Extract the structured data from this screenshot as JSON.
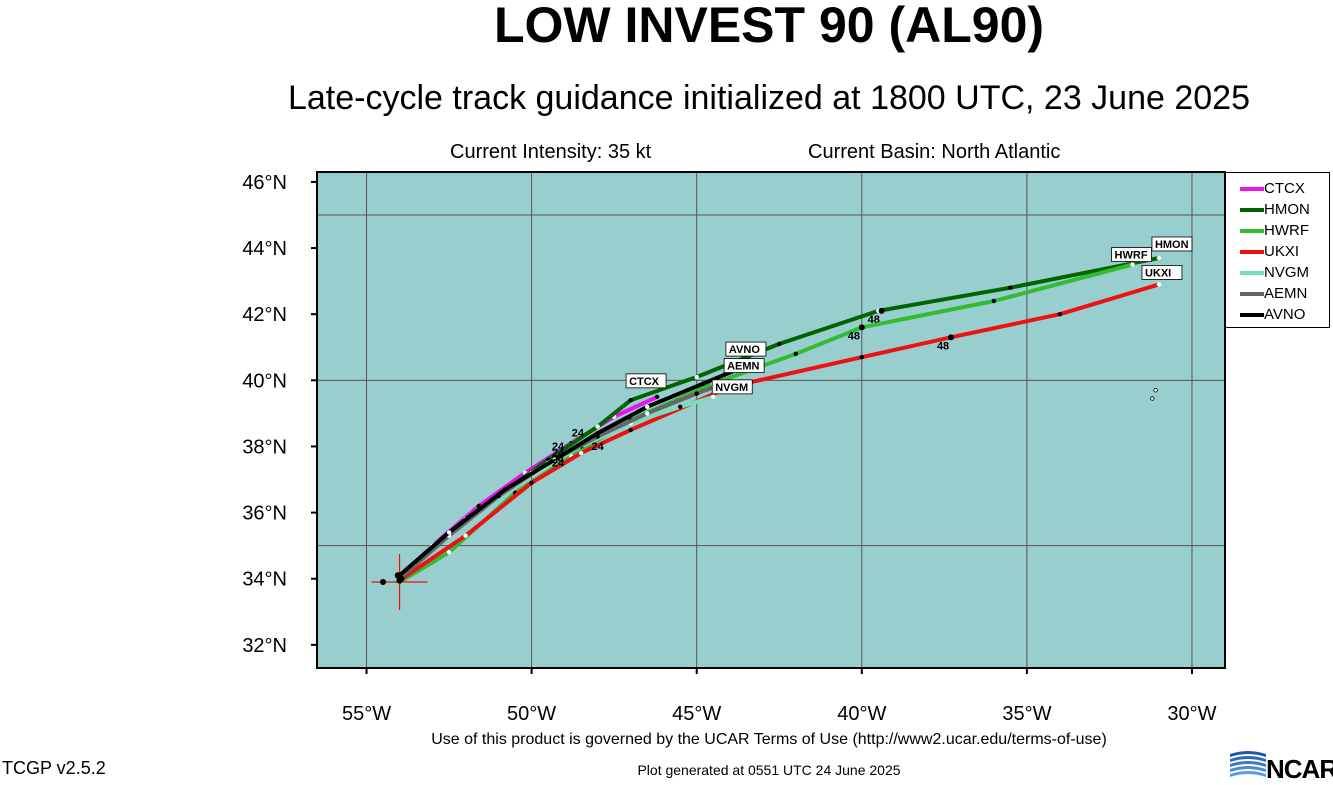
{
  "header": {
    "title": "LOW INVEST 90 (AL90)",
    "subtitle": "Late-cycle track guidance initialized at 1800 UTC, 23 June 2025",
    "intensity": "Current Intensity: 35 kt",
    "basin": "Current Basin: North Atlantic"
  },
  "footer": {
    "terms": "Use of this product is governed by the UCAR Terms of Use (http://www2.ucar.edu/terms-of-use)",
    "generated": "Plot generated at 0551 UTC   24 June 2025",
    "version": "TCGP v2.5.2",
    "logo_text": "NCAR"
  },
  "colors": {
    "ocean": "#98cece",
    "grid": "#555555",
    "initial_cross": "#ee1111"
  },
  "chart_data": {
    "type": "line",
    "title": "LOW INVEST 90 (AL90)",
    "xlim": [
      -56.5,
      -29
    ],
    "ylim": [
      31.3,
      46.3
    ],
    "x_ticks": [
      {
        "value": -55,
        "label": "55°W"
      },
      {
        "value": -50,
        "label": "50°W"
      },
      {
        "value": -45,
        "label": "45°W"
      },
      {
        "value": -40,
        "label": "40°W"
      },
      {
        "value": -35,
        "label": "35°W"
      },
      {
        "value": -30,
        "label": "30°W"
      }
    ],
    "y_ticks": [
      {
        "value": 32,
        "label": "32°N"
      },
      {
        "value": 34,
        "label": "34°N"
      },
      {
        "value": 36,
        "label": "36°N"
      },
      {
        "value": 38,
        "label": "38°N"
      },
      {
        "value": 40,
        "label": "40°N"
      },
      {
        "value": 42,
        "label": "42°N"
      },
      {
        "value": 44,
        "label": "44°N"
      },
      {
        "value": 46,
        "label": "46°N"
      }
    ],
    "grid_lines_lon": [
      -55,
      -50,
      -45,
      -40,
      -35,
      -30
    ],
    "grid_lines_lat": [
      35,
      40,
      45
    ],
    "legend_position": "right",
    "initial_position": {
      "lon": -54.0,
      "lat": 33.9
    },
    "series": [
      {
        "name": "CTCX",
        "color": "#ee11ee",
        "points": [
          [
            -54.0,
            34.05
          ],
          [
            -53.0,
            35.0
          ],
          [
            -51.6,
            36.2
          ],
          [
            -50.2,
            37.2
          ],
          [
            -48.8,
            38.1
          ],
          [
            -47.5,
            38.9
          ],
          [
            -46.2,
            39.5
          ]
        ],
        "end_label": "CTCX"
      },
      {
        "name": "HMON",
        "color": "#006400",
        "points": [
          [
            -54.0,
            34.0
          ],
          [
            -52.0,
            35.8
          ],
          [
            -49.5,
            37.6
          ],
          [
            -48.0,
            38.6
          ],
          [
            -47.0,
            39.4
          ],
          [
            -45.0,
            40.1
          ],
          [
            -42.5,
            41.1
          ],
          [
            -39.5,
            42.1
          ],
          [
            -35.5,
            42.8
          ],
          [
            -31.0,
            43.7
          ]
        ],
        "markers": [
          {
            "lon": -39.4,
            "lat": 42.1,
            "label": "48"
          }
        ],
        "end_label": "HMON"
      },
      {
        "name": "HWRF",
        "color": "#33bb33",
        "points": [
          [
            -54.0,
            33.9
          ],
          [
            -52.5,
            34.8
          ],
          [
            -50.5,
            36.6
          ],
          [
            -48.8,
            37.7
          ],
          [
            -47.0,
            38.8
          ],
          [
            -44.5,
            39.9
          ],
          [
            -42.0,
            40.8
          ],
          [
            -40.0,
            41.6
          ],
          [
            -36.0,
            42.4
          ],
          [
            -31.8,
            43.5
          ]
        ],
        "markers": [
          {
            "lon": -40.0,
            "lat": 41.6,
            "label": "48"
          }
        ],
        "end_label": "HWRF"
      },
      {
        "name": "UKXI",
        "color": "#ee1111",
        "points": [
          [
            -54.0,
            33.95
          ],
          [
            -52.0,
            35.3
          ],
          [
            -50.0,
            36.9
          ],
          [
            -48.5,
            37.8
          ],
          [
            -47.0,
            38.5
          ],
          [
            -44.0,
            39.8
          ],
          [
            -40.0,
            40.7
          ],
          [
            -37.3,
            41.3
          ],
          [
            -34.0,
            42.0
          ],
          [
            -31.0,
            42.9
          ]
        ],
        "markers": [
          {
            "lon": -37.3,
            "lat": 41.3,
            "label": "48"
          }
        ],
        "end_label": "UKXI"
      },
      {
        "name": "NVGM",
        "color": "#77ddbb",
        "points": [
          [
            -54.0,
            34.0
          ],
          [
            -53.0,
            35.0
          ],
          [
            -51.5,
            36.1
          ],
          [
            -50.0,
            37.2
          ],
          [
            -48.5,
            38.0
          ],
          [
            -47.0,
            38.7
          ],
          [
            -45.5,
            39.2
          ],
          [
            -44.5,
            39.5
          ]
        ],
        "end_label": "NVGM"
      },
      {
        "name": "AEMN",
        "color": "#666666",
        "points": [
          [
            -54.0,
            34.0
          ],
          [
            -52.5,
            35.3
          ],
          [
            -51.0,
            36.5
          ],
          [
            -49.5,
            37.5
          ],
          [
            -48.0,
            38.3
          ],
          [
            -46.5,
            39.0
          ],
          [
            -45.0,
            39.6
          ],
          [
            -44.2,
            39.9
          ]
        ],
        "end_label": "AEMN"
      },
      {
        "name": "AVNO",
        "color": "#000000",
        "points": [
          [
            -54.0,
            34.1
          ],
          [
            -52.5,
            35.4
          ],
          [
            -50.8,
            36.7
          ],
          [
            -49.3,
            37.6
          ],
          [
            -48.0,
            38.4
          ],
          [
            -46.5,
            39.2
          ],
          [
            -44.8,
            39.9
          ],
          [
            -43.6,
            40.4
          ]
        ],
        "end_label": "AVNO"
      }
    ],
    "tau_labels": [
      {
        "lon": -48.6,
        "lat": 38.3,
        "label": "24"
      },
      {
        "lon": -48.0,
        "lat": 37.9,
        "label": "24"
      },
      {
        "lon": -49.2,
        "lat": 37.9,
        "label": "24"
      },
      {
        "lon": -49.2,
        "lat": 37.7,
        "label": "24"
      },
      {
        "lon": -49.2,
        "lat": 37.5,
        "label": "24"
      },
      {
        "lon": -49.2,
        "lat": 37.4,
        "label": "24"
      }
    ],
    "extra_points": [
      {
        "lon": -31.1,
        "lat": 39.7
      },
      {
        "lon": -31.2,
        "lat": 39.45
      }
    ]
  }
}
